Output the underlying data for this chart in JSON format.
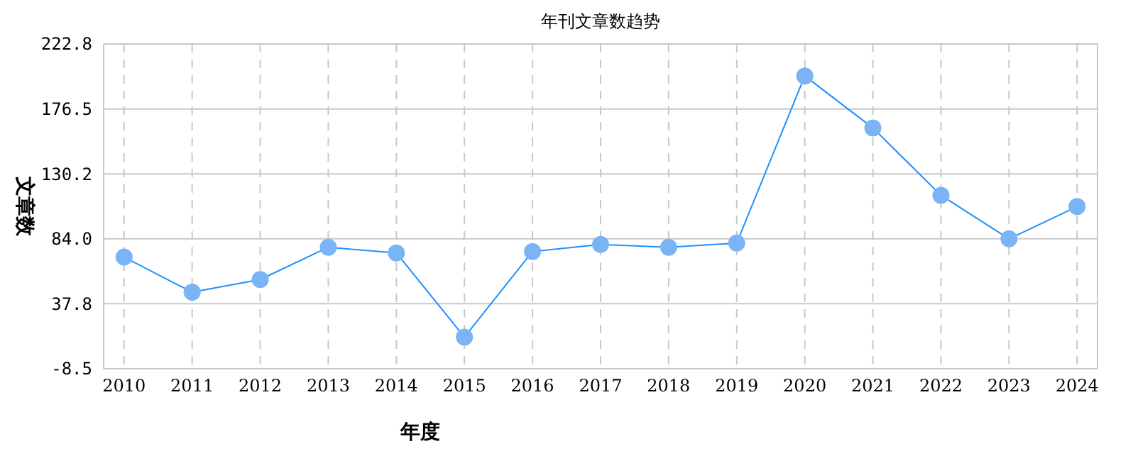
{
  "chart_data": {
    "type": "line",
    "title": "年刊文章数趋势",
    "xlabel": "年度",
    "ylabel": "文章数",
    "categories": [
      "2010",
      "2011",
      "2012",
      "2013",
      "2014",
      "2015",
      "2016",
      "2017",
      "2018",
      "2019",
      "2020",
      "2021",
      "2022",
      "2023",
      "2024"
    ],
    "series": [
      {
        "color": "#1e90ff",
        "values": [
          71,
          46,
          55,
          78,
          74,
          14,
          75,
          80,
          78,
          81,
          200,
          163,
          115,
          84,
          107
        ]
      }
    ],
    "ylim": [
      -8.5,
      222.8
    ],
    "yticks": [
      {
        "value": -8.5,
        "label": "-8.5"
      },
      {
        "value": 37.8,
        "label": "37.8"
      },
      {
        "value": 84,
        "label": "84.0"
      },
      {
        "value": 130.2,
        "label": "130.2"
      },
      {
        "value": 176.5,
        "label": "176.5"
      },
      {
        "value": 222.8,
        "label": "222.8"
      }
    ],
    "grid": true,
    "marker": "circle",
    "line_style": "solid"
  }
}
